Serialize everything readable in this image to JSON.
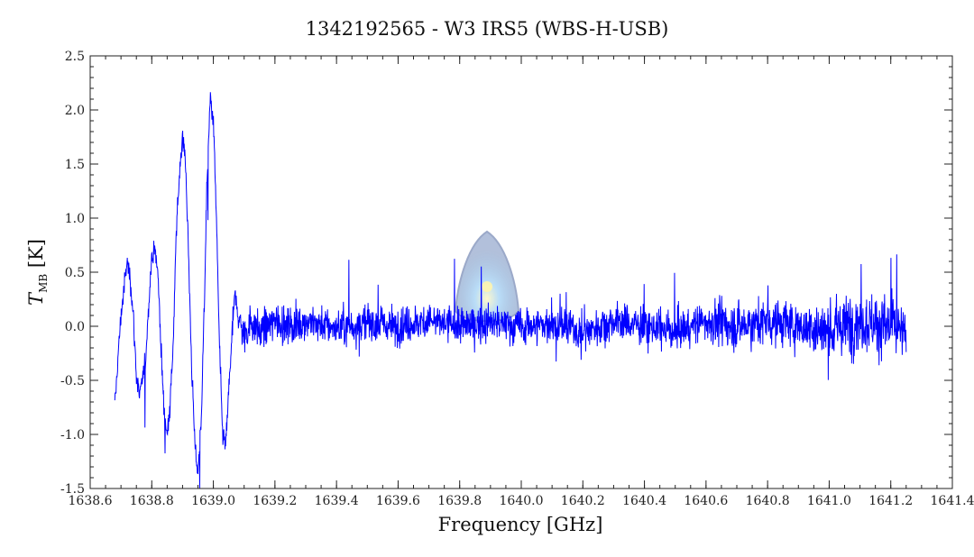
{
  "chart_data": {
    "type": "line",
    "title": "1342192565 - W3 IRS5 (WBS-H-USB)",
    "xlabel": "Frequency [GHz]",
    "ylabel": {
      "main": "T",
      "sub": "MB",
      "unit": "[K]"
    },
    "xlim": [
      1638.6,
      1641.4
    ],
    "ylim": [
      -1.5,
      2.5
    ],
    "xticks": [
      "1638.6",
      "1638.8",
      "1639.0",
      "1639.2",
      "1639.4",
      "1639.6",
      "1639.8",
      "1640.0",
      "1640.2",
      "1640.4",
      "1640.6",
      "1640.8",
      "1641.0",
      "1641.2",
      "1641.4"
    ],
    "yticks": [
      "-1.5",
      "-1.0",
      "-0.5",
      "0.0",
      "0.5",
      "1.0",
      "1.5",
      "2.0",
      "2.5"
    ],
    "grid": false,
    "series": [
      {
        "color": "#0000ff",
        "x": [
          1638.68,
          1638.69,
          1638.7,
          1638.71,
          1638.72,
          1638.73,
          1638.74,
          1638.75,
          1638.76,
          1638.77,
          1638.78,
          1638.79,
          1638.8,
          1638.81,
          1638.82,
          1638.83,
          1638.84,
          1638.85,
          1638.86,
          1638.87,
          1638.88,
          1638.89,
          1638.9,
          1638.91,
          1638.92,
          1638.93,
          1638.94,
          1638.95,
          1638.96,
          1638.97,
          1638.98,
          1638.99,
          1639.0,
          1639.01,
          1639.02,
          1639.03,
          1639.04,
          1639.05,
          1639.06,
          1639.07,
          1639.08,
          1639.1,
          1639.12,
          1639.15,
          1639.2,
          1639.25,
          1639.3,
          1639.4,
          1639.5,
          1639.6,
          1639.7,
          1639.8,
          1639.9,
          1640.0,
          1640.1,
          1640.2,
          1640.3,
          1640.4,
          1640.5,
          1640.6,
          1640.7,
          1640.8,
          1640.9,
          1641.0,
          1641.1,
          1641.2,
          1641.25
        ],
        "y": [
          -0.75,
          -0.3,
          0.1,
          0.35,
          0.6,
          0.45,
          0.1,
          -0.45,
          -0.65,
          -0.5,
          -0.3,
          0.2,
          0.65,
          0.7,
          0.5,
          -0.2,
          -0.8,
          -1.0,
          -0.7,
          -0.15,
          0.9,
          1.4,
          1.8,
          1.5,
          0.6,
          -0.4,
          -1.1,
          -1.35,
          -0.9,
          0.1,
          1.4,
          2.1,
          1.9,
          1.0,
          -0.2,
          -1.0,
          -1.1,
          -0.6,
          -0.1,
          0.3,
          0.1,
          -0.1,
          0.05,
          -0.05,
          0.05,
          0.0,
          0.05,
          -0.02,
          0.03,
          0.0,
          0.05,
          0.0,
          0.03,
          0.0,
          0.02,
          -0.05,
          0.05,
          0.0,
          -0.05,
          0.05,
          0.0,
          0.05,
          0.0,
          -0.05,
          0.05,
          0.0,
          -0.1
        ]
      }
    ]
  },
  "watermark": "herschel-logo-icon"
}
